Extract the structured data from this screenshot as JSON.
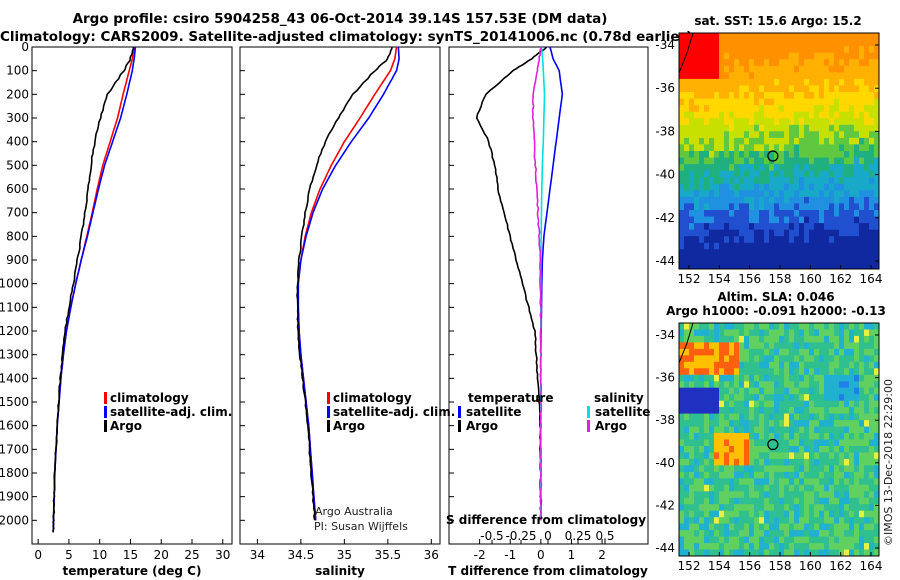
{
  "header": {
    "title_line1": "Argo profile: csiro 5904258_43 06-Oct-2014 39.14S 157.53E (DM data)",
    "title_line2": "Climatology: CARS2009. Satellite-adjusted climatology: synTS_20141006.nc (0.78d earlier)"
  },
  "colors": {
    "climatology": "#ff0000",
    "satellite": "#0000ff",
    "argo": "#000000",
    "salinity_satellite": "#00e0e0",
    "salinity_argo": "#e020e0"
  },
  "chart_data": [
    {
      "type": "line",
      "panel": "temperature",
      "xlabel": "temperature (deg C)",
      "xlim": [
        -1,
        31.5
      ],
      "xticks": [
        0,
        5,
        10,
        15,
        20,
        25,
        30
      ],
      "ylim": [
        0,
        2100
      ],
      "yticks": [
        0,
        100,
        200,
        300,
        400,
        500,
        600,
        700,
        800,
        900,
        1000,
        1100,
        1200,
        1300,
        1400,
        1500,
        1600,
        1700,
        1800,
        1900,
        2000
      ],
      "depth": [
        0,
        50,
        100,
        200,
        300,
        400,
        500,
        600,
        700,
        800,
        900,
        1000,
        1100,
        1200,
        1300,
        1400,
        1500,
        1600,
        1700,
        1800,
        1900,
        2000,
        2050
      ],
      "series": [
        {
          "name": "climatology",
          "color": "#ff0000",
          "values": [
            15.6,
            15.3,
            14.8,
            13.8,
            12.9,
            11.7,
            10.5,
            9.6,
            8.8,
            7.9,
            7.0,
            6.1,
            5.3,
            4.6,
            4.1,
            3.7,
            3.4,
            3.1,
            2.9,
            2.7,
            2.6,
            2.5,
            2.45
          ]
        },
        {
          "name": "satellite-adj. clim.",
          "color": "#0000ff",
          "values": [
            15.8,
            15.6,
            15.3,
            14.4,
            13.4,
            12.1,
            10.8,
            9.8,
            8.9,
            8.0,
            7.0,
            6.1,
            5.3,
            4.6,
            4.1,
            3.7,
            3.4,
            3.1,
            2.9,
            2.7,
            2.6,
            2.5,
            2.45
          ]
        },
        {
          "name": "Argo",
          "color": "#000000",
          "values": [
            15.5,
            15.0,
            13.9,
            11.3,
            10.1,
            9.2,
            8.6,
            8.1,
            7.6,
            7.0,
            6.4,
            5.7,
            5.0,
            4.4,
            4.0,
            3.6,
            3.3,
            3.1,
            2.9,
            2.7,
            2.6,
            2.5,
            2.45
          ]
        }
      ],
      "legend": [
        "climatology",
        "satellite-adj. clim.",
        "Argo"
      ]
    },
    {
      "type": "line",
      "panel": "salinity",
      "xlabel": "salinity",
      "xlim": [
        33.8,
        36.1
      ],
      "xticks": [
        34,
        34.5,
        35,
        35.5,
        36
      ],
      "ylim": [
        0,
        2100
      ],
      "depth": [
        0,
        50,
        100,
        200,
        300,
        400,
        500,
        600,
        700,
        800,
        900,
        1000,
        1100,
        1200,
        1300,
        1400,
        1500,
        1600,
        1700,
        1800,
        1900,
        2000
      ],
      "series": [
        {
          "name": "climatology",
          "color": "#ff0000",
          "values": [
            35.6,
            35.58,
            35.53,
            35.35,
            35.18,
            35.0,
            34.85,
            34.72,
            34.62,
            34.55,
            34.5,
            34.47,
            34.47,
            34.48,
            34.5,
            34.53,
            34.56,
            34.59,
            34.61,
            34.63,
            34.65,
            34.67
          ]
        },
        {
          "name": "satellite-adj. clim.",
          "color": "#0000ff",
          "values": [
            35.62,
            35.63,
            35.6,
            35.45,
            35.28,
            35.08,
            34.9,
            34.75,
            34.64,
            34.56,
            34.5,
            34.47,
            34.47,
            34.48,
            34.5,
            34.53,
            34.56,
            34.59,
            34.61,
            34.63,
            34.65,
            34.67
          ]
        },
        {
          "name": "Argo",
          "color": "#000000",
          "values": [
            35.55,
            35.5,
            35.35,
            35.1,
            34.93,
            34.78,
            34.68,
            34.6,
            34.55,
            34.51,
            34.48,
            34.46,
            34.46,
            34.47,
            34.49,
            34.52,
            34.55,
            34.58,
            34.6,
            34.62,
            34.64,
            34.66
          ]
        }
      ],
      "legend": [
        "climatology",
        "satellite-adj. clim.",
        "Argo"
      ],
      "annotation": [
        "Argo Australia",
        "PI: Susan Wijffels"
      ]
    },
    {
      "type": "line",
      "panel": "difference",
      "xlabel": "T difference from climatology",
      "xlim": [
        -3,
        3.5
      ],
      "xticks": [
        -2,
        -1,
        0,
        1,
        2
      ],
      "top_xlabel": "S difference from climatology",
      "top_xticks": [
        "-0.5",
        "-0.25",
        "0",
        "0.25",
        "0.5"
      ],
      "depth": [
        0,
        50,
        100,
        200,
        300,
        400,
        500,
        600,
        700,
        800,
        900,
        1000,
        1100,
        1200,
        1300,
        1400,
        1500,
        1600,
        1700,
        1800,
        1900,
        2000
      ],
      "series": [
        {
          "name": "temperature satellite",
          "color": "#0000ff",
          "values": [
            0.3,
            0.4,
            0.6,
            0.7,
            0.6,
            0.5,
            0.4,
            0.3,
            0.2,
            0.1,
            0.05,
            0.03,
            0.02,
            0.01,
            0.0,
            0.0,
            0.0,
            0.0,
            0.0,
            0.0,
            0.0,
            0.0
          ]
        },
        {
          "name": "temperature Argo",
          "color": "#000000",
          "values": [
            0.2,
            -0.3,
            -0.9,
            -1.8,
            -2.1,
            -1.7,
            -1.5,
            -1.4,
            -1.2,
            -1.0,
            -0.8,
            -0.6,
            -0.4,
            -0.2,
            -0.15,
            -0.1,
            -0.05,
            -0.02,
            -0.02,
            -0.01,
            0.0,
            0.0
          ]
        },
        {
          "name": "salinity satellite",
          "color": "#00e0e0",
          "values": [
            0.02,
            0.06,
            0.08,
            0.12,
            0.1,
            0.08,
            0.05,
            0.03,
            0.02,
            0.01,
            0.0,
            0.0,
            0.0,
            0.0,
            0.0,
            0.0,
            0.0,
            0.0,
            0.0,
            0.0,
            0.0,
            0.0
          ]
        },
        {
          "name": "salinity Argo",
          "color": "#e020e0",
          "values": [
            0.0,
            -0.05,
            -0.12,
            -0.25,
            -0.25,
            -0.22,
            -0.18,
            -0.13,
            -0.09,
            -0.05,
            -0.03,
            -0.01,
            0.0,
            0.0,
            0.0,
            0.0,
            0.0,
            0.0,
            0.0,
            0.0,
            0.0,
            0.0
          ]
        }
      ],
      "legend": {
        "temperature_title": "temperature",
        "salinity_title": "salinity",
        "items": [
          "satellite",
          "Argo",
          "satellite",
          "Argo"
        ]
      }
    },
    {
      "type": "heatmap",
      "panel": "sst_map",
      "title": "sat. SST: 15.6 Argo: 15.2",
      "x_ticks": [
        "152",
        "154",
        "156",
        "158",
        "160",
        "162",
        "164"
      ],
      "y_ticks": [
        "-34",
        "-36",
        "-38",
        "-40",
        "-42",
        "-44"
      ],
      "marker": {
        "lon": 157.53,
        "lat": -39.14
      }
    },
    {
      "type": "heatmap",
      "panel": "sla_map",
      "title_line1": "Altim. SLA: 0.046",
      "title_line2": "Argo h1000: -0.091 h2000: -0.13",
      "x_ticks": [
        "152",
        "154",
        "156",
        "158",
        "160",
        "162",
        "164"
      ],
      "y_ticks": [
        "-34",
        "-36",
        "-38",
        "-40",
        "-42",
        "-44"
      ],
      "marker": {
        "lon": 157.53,
        "lat": -39.14
      }
    }
  ],
  "footer": {
    "credit": "©IMOS 13-Dec-2018 22:29:00"
  }
}
